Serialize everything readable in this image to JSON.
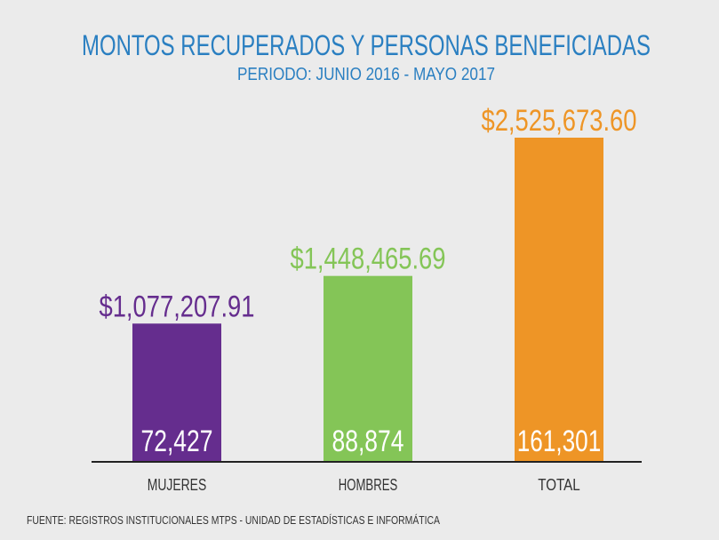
{
  "chart_data": {
    "type": "bar",
    "title": "MONTOS RECUPERADOS Y PERSONAS BENEFICIADAS",
    "subtitle": "PERIODO: JUNIO 2016 - MAYO 2017",
    "categories": [
      "MUJERES",
      "HOMBRES",
      "TOTAL"
    ],
    "values": [
      1077207.91,
      1448465.69,
      2525673.6
    ],
    "value_labels": [
      "$1,077,207.91",
      "$1,448,465.69",
      "$2,525,673.60"
    ],
    "colors": [
      "#652d8e",
      "#84c557",
      "#ee9526"
    ],
    "counts": [
      72427,
      88874,
      161301
    ],
    "count_labels": [
      "72,427",
      "88,874",
      "161,301"
    ],
    "source": "FUENTE: REGISTROS INSTITUCIONALES MTPS - UNIDAD DE ESTADÍSTICAS E INFORMÁTICA"
  }
}
